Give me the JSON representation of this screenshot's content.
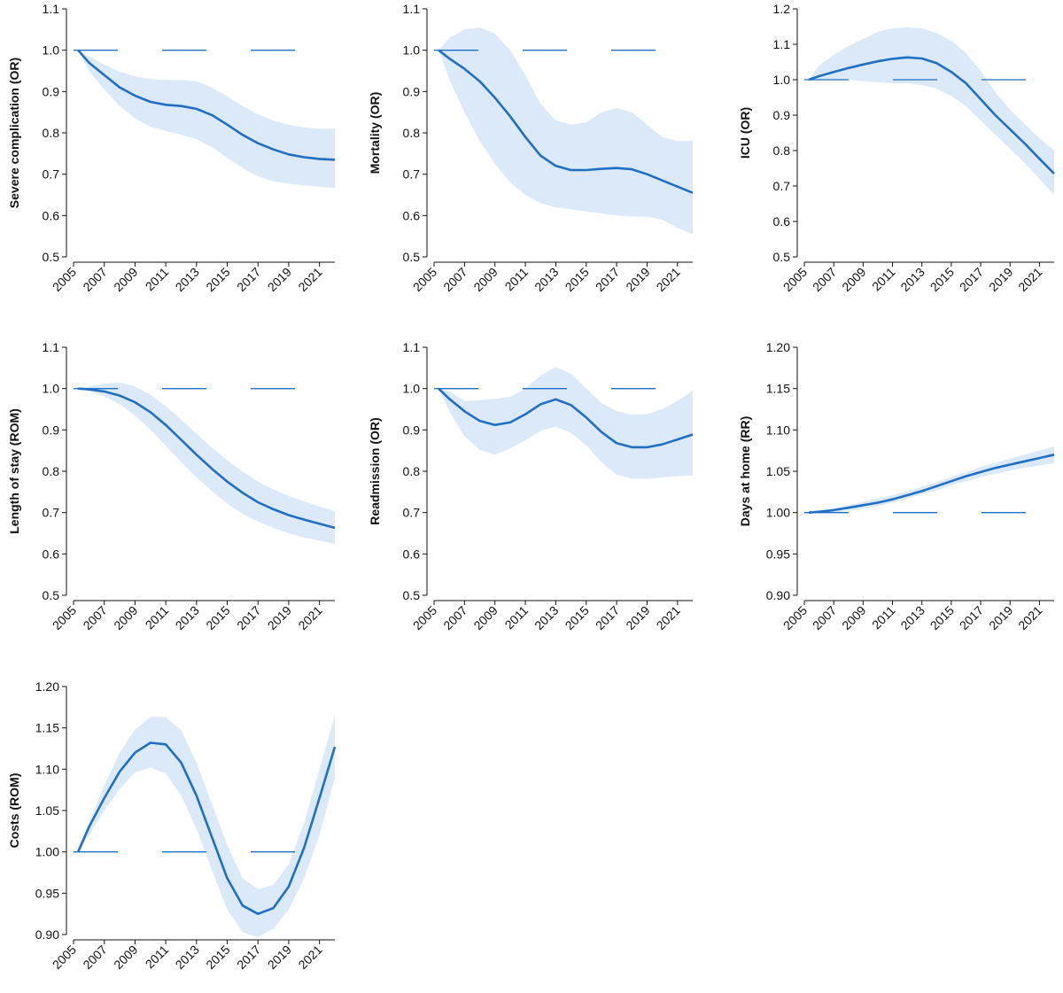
{
  "style": {
    "line_color": "#1f6fc4",
    "band_color": "#dbe9f8",
    "ref_color": "#1f6fc4",
    "axis_color": "#111111"
  },
  "chart_data": [
    {
      "type": "line",
      "ylabel": "Severe complication (OR)",
      "xlim": [
        2005,
        2022
      ],
      "ylim": [
        0.5,
        1.1
      ],
      "xticks": [
        2005,
        2007,
        2009,
        2011,
        2013,
        2015,
        2017,
        2019,
        2021
      ],
      "yticks": [
        0.5,
        0.6,
        0.7,
        0.8,
        0.9,
        1.0,
        1.1
      ],
      "yticklabels": [
        "0.5",
        "0.6",
        "0.7",
        "0.8",
        "0.9",
        "1.0",
        "1.1"
      ],
      "reference": 1.0,
      "x": [
        2005.3,
        2006,
        2007,
        2008,
        2009,
        2010,
        2011,
        2012,
        2013,
        2014,
        2015,
        2016,
        2017,
        2018,
        2019,
        2020,
        2021,
        2022
      ],
      "y": [
        1.0,
        0.97,
        0.94,
        0.91,
        0.89,
        0.875,
        0.868,
        0.865,
        0.858,
        0.843,
        0.82,
        0.795,
        0.775,
        0.76,
        0.748,
        0.741,
        0.737,
        0.735
      ],
      "lower": [
        1.0,
        0.95,
        0.905,
        0.865,
        0.835,
        0.815,
        0.805,
        0.795,
        0.785,
        0.765,
        0.74,
        0.715,
        0.695,
        0.683,
        0.677,
        0.673,
        0.67,
        0.667
      ],
      "upper": [
        1.0,
        0.985,
        0.965,
        0.948,
        0.937,
        0.93,
        0.928,
        0.928,
        0.925,
        0.91,
        0.888,
        0.865,
        0.845,
        0.83,
        0.82,
        0.813,
        0.81,
        0.81
      ]
    },
    {
      "type": "line",
      "ylabel": "Mortality (OR)",
      "xlim": [
        2005,
        2022
      ],
      "ylim": [
        0.5,
        1.1
      ],
      "xticks": [
        2005,
        2007,
        2009,
        2011,
        2013,
        2015,
        2017,
        2019,
        2021
      ],
      "yticks": [
        0.5,
        0.6,
        0.7,
        0.8,
        0.9,
        1.0,
        1.1
      ],
      "yticklabels": [
        "0.5",
        "0.6",
        "0.7",
        "0.8",
        "0.9",
        "1.0",
        "1.1"
      ],
      "reference": 1.0,
      "x": [
        2005.3,
        2006,
        2007,
        2008,
        2009,
        2010,
        2011,
        2012,
        2013,
        2014,
        2015,
        2016,
        2017,
        2018,
        2019,
        2020,
        2021,
        2022
      ],
      "y": [
        1.0,
        0.98,
        0.955,
        0.925,
        0.885,
        0.84,
        0.79,
        0.745,
        0.72,
        0.71,
        0.71,
        0.713,
        0.715,
        0.712,
        0.7,
        0.685,
        0.67,
        0.655
      ],
      "lower": [
        1.0,
        0.93,
        0.85,
        0.78,
        0.725,
        0.68,
        0.65,
        0.63,
        0.62,
        0.615,
        0.61,
        0.605,
        0.6,
        0.598,
        0.597,
        0.59,
        0.57,
        0.555
      ],
      "upper": [
        1.0,
        1.03,
        1.05,
        1.055,
        1.04,
        1.0,
        0.94,
        0.87,
        0.83,
        0.82,
        0.825,
        0.85,
        0.86,
        0.85,
        0.82,
        0.79,
        0.78,
        0.78
      ]
    },
    {
      "type": "line",
      "ylabel": "ICU (OR)",
      "xlim": [
        2005,
        2022
      ],
      "ylim": [
        0.5,
        1.2
      ],
      "xticks": [
        2005,
        2007,
        2009,
        2011,
        2013,
        2015,
        2017,
        2019,
        2021
      ],
      "yticks": [
        0.5,
        0.6,
        0.7,
        0.8,
        0.9,
        1.0,
        1.1,
        1.2
      ],
      "yticklabels": [
        "0.5",
        "0.6",
        "0.7",
        "0.8",
        "0.9",
        "1.0",
        "1.1",
        "1.2"
      ],
      "reference": 1.0,
      "x": [
        2005.3,
        2006,
        2007,
        2008,
        2009,
        2010,
        2011,
        2012,
        2013,
        2014,
        2015,
        2016,
        2017,
        2018,
        2019,
        2020,
        2021,
        2022
      ],
      "y": [
        1.0,
        1.01,
        1.022,
        1.033,
        1.043,
        1.052,
        1.059,
        1.063,
        1.06,
        1.047,
        1.022,
        0.99,
        0.945,
        0.9,
        0.86,
        0.82,
        0.777,
        0.735
      ],
      "lower": [
        1.0,
        1.0,
        1.0,
        1.0,
        0.996,
        0.993,
        0.99,
        0.99,
        0.985,
        0.975,
        0.955,
        0.925,
        0.885,
        0.845,
        0.805,
        0.765,
        0.72,
        0.675
      ],
      "upper": [
        1.0,
        1.04,
        1.07,
        1.095,
        1.115,
        1.135,
        1.145,
        1.148,
        1.145,
        1.132,
        1.11,
        1.075,
        1.025,
        0.965,
        0.915,
        0.875,
        0.835,
        0.8
      ]
    },
    {
      "type": "line",
      "ylabel": "Length of stay (ROM)",
      "xlim": [
        2005,
        2022
      ],
      "ylim": [
        0.5,
        1.1
      ],
      "xticks": [
        2005,
        2007,
        2009,
        2011,
        2013,
        2015,
        2017,
        2019,
        2021
      ],
      "yticks": [
        0.5,
        0.6,
        0.7,
        0.8,
        0.9,
        1.0,
        1.1
      ],
      "yticklabels": [
        "0.5",
        "0.6",
        "0.7",
        "0.8",
        "0.9",
        "1.0",
        "1.1"
      ],
      "reference": 1.0,
      "x": [
        2005.3,
        2006,
        2007,
        2008,
        2009,
        2010,
        2011,
        2012,
        2013,
        2014,
        2015,
        2016,
        2017,
        2018,
        2019,
        2020,
        2021,
        2022
      ],
      "y": [
        1.0,
        0.998,
        0.993,
        0.983,
        0.967,
        0.943,
        0.912,
        0.876,
        0.84,
        0.806,
        0.775,
        0.748,
        0.725,
        0.708,
        0.694,
        0.683,
        0.673,
        0.663
      ],
      "lower": [
        1.0,
        0.995,
        0.982,
        0.962,
        0.935,
        0.9,
        0.862,
        0.822,
        0.785,
        0.752,
        0.722,
        0.697,
        0.678,
        0.663,
        0.65,
        0.64,
        0.632,
        0.625
      ],
      "upper": [
        1.0,
        1.005,
        1.012,
        1.015,
        1.005,
        0.985,
        0.957,
        0.925,
        0.891,
        0.857,
        0.826,
        0.799,
        0.775,
        0.756,
        0.74,
        0.727,
        0.715,
        0.703
      ]
    },
    {
      "type": "line",
      "ylabel": "Readmission (OR)",
      "xlim": [
        2005,
        2022
      ],
      "ylim": [
        0.5,
        1.1
      ],
      "xticks": [
        2005,
        2007,
        2009,
        2011,
        2013,
        2015,
        2017,
        2019,
        2021
      ],
      "yticks": [
        0.5,
        0.6,
        0.7,
        0.8,
        0.9,
        1.0,
        1.1
      ],
      "yticklabels": [
        "0.5",
        "0.6",
        "0.7",
        "0.8",
        "0.9",
        "1.0",
        "1.1"
      ],
      "reference": 1.0,
      "x": [
        2005.3,
        2006,
        2007,
        2008,
        2009,
        2010,
        2011,
        2012,
        2013,
        2014,
        2015,
        2016,
        2017,
        2018,
        2019,
        2020,
        2021,
        2022
      ],
      "y": [
        1.0,
        0.975,
        0.945,
        0.922,
        0.912,
        0.918,
        0.938,
        0.962,
        0.974,
        0.96,
        0.93,
        0.895,
        0.868,
        0.858,
        0.858,
        0.865,
        0.877,
        0.889
      ],
      "lower": [
        1.0,
        0.945,
        0.885,
        0.852,
        0.84,
        0.855,
        0.875,
        0.898,
        0.908,
        0.893,
        0.863,
        0.822,
        0.792,
        0.782,
        0.782,
        0.785,
        0.788,
        0.79
      ],
      "upper": [
        1.0,
        0.993,
        0.97,
        0.972,
        0.975,
        0.98,
        1.0,
        1.032,
        1.052,
        1.036,
        1.0,
        0.965,
        0.945,
        0.937,
        0.938,
        0.95,
        0.97,
        0.995
      ]
    },
    {
      "type": "line",
      "ylabel": "Days at home (RR)",
      "xlim": [
        2005,
        2022
      ],
      "ylim": [
        0.9,
        1.2
      ],
      "xticks": [
        2005,
        2007,
        2009,
        2011,
        2013,
        2015,
        2017,
        2019,
        2021
      ],
      "yticks": [
        0.9,
        0.95,
        1.0,
        1.05,
        1.1,
        1.15,
        1.2
      ],
      "yticklabels": [
        "0.90",
        "0.95",
        "1.00",
        "1.05",
        "1.10",
        "1.15",
        "1.20"
      ],
      "reference": 1.0,
      "x": [
        2005.3,
        2006,
        2007,
        2008,
        2009,
        2010,
        2011,
        2012,
        2013,
        2014,
        2015,
        2016,
        2017,
        2018,
        2019,
        2020,
        2021,
        2022
      ],
      "y": [
        1.0,
        1.001,
        1.003,
        1.006,
        1.009,
        1.012,
        1.016,
        1.021,
        1.026,
        1.032,
        1.038,
        1.044,
        1.049,
        1.054,
        1.058,
        1.062,
        1.066,
        1.07
      ],
      "lower": [
        1.0,
        1.0,
        1.0,
        1.002,
        1.005,
        1.008,
        1.012,
        1.017,
        1.022,
        1.027,
        1.033,
        1.038,
        1.043,
        1.047,
        1.051,
        1.054,
        1.057,
        1.06
      ],
      "upper": [
        1.0,
        1.002,
        1.005,
        1.009,
        1.013,
        1.017,
        1.021,
        1.026,
        1.031,
        1.037,
        1.043,
        1.049,
        1.055,
        1.06,
        1.065,
        1.07,
        1.075,
        1.08
      ]
    },
    {
      "type": "line",
      "ylabel": "Costs (ROM)",
      "xlim": [
        2005,
        2022
      ],
      "ylim": [
        0.9,
        1.2
      ],
      "xticks": [
        2005,
        2007,
        2009,
        2011,
        2013,
        2015,
        2017,
        2019,
        2021
      ],
      "yticks": [
        0.9,
        0.95,
        1.0,
        1.05,
        1.1,
        1.15,
        1.2
      ],
      "yticklabels": [
        "0.90",
        "0.95",
        "1.00",
        "1.05",
        "1.10",
        "1.15",
        "1.20"
      ],
      "reference": 1.0,
      "x": [
        2005.3,
        2006,
        2007,
        2008,
        2009,
        2010,
        2011,
        2012,
        2013,
        2014,
        2015,
        2016,
        2017,
        2018,
        2019,
        2020,
        2021,
        2022
      ],
      "y": [
        1.0,
        1.03,
        1.065,
        1.097,
        1.12,
        1.132,
        1.13,
        1.108,
        1.068,
        1.018,
        0.968,
        0.935,
        0.925,
        0.932,
        0.958,
        1.005,
        1.065,
        1.127
      ],
      "lower": [
        1.0,
        1.02,
        1.05,
        1.076,
        1.096,
        1.102,
        1.095,
        1.068,
        1.028,
        0.978,
        0.93,
        0.903,
        0.897,
        0.907,
        0.93,
        0.968,
        1.02,
        1.09
      ],
      "upper": [
        1.0,
        1.035,
        1.08,
        1.12,
        1.148,
        1.163,
        1.163,
        1.147,
        1.108,
        1.058,
        1.008,
        0.968,
        0.955,
        0.96,
        0.985,
        1.035,
        1.1,
        1.165
      ]
    }
  ]
}
